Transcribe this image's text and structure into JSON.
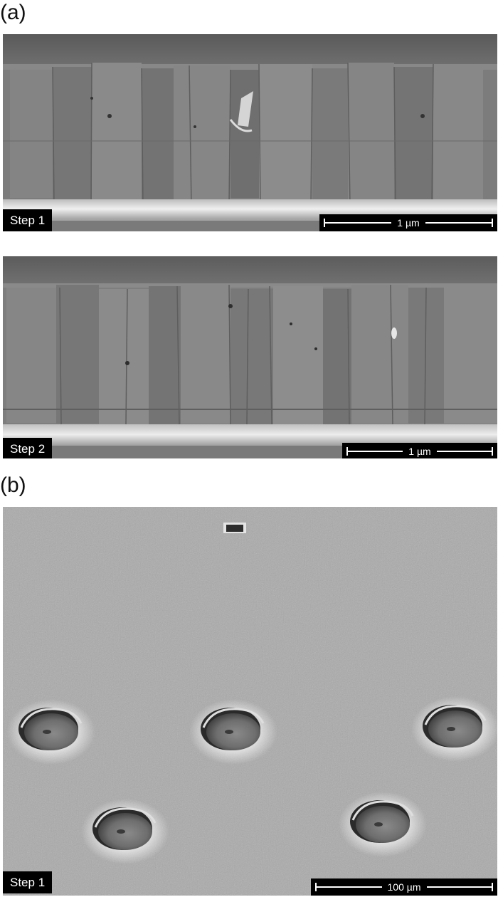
{
  "figure": {
    "panel_a": {
      "letter": "(a)",
      "image_1": {
        "tag": "Step 1",
        "scale": "1 µm"
      },
      "image_2": {
        "tag": "Step 2",
        "scale": "1 µm"
      }
    },
    "panel_b": {
      "letter": "(b)",
      "image_3": {
        "tag": "Step 1",
        "scale": "100 µm"
      }
    }
  }
}
